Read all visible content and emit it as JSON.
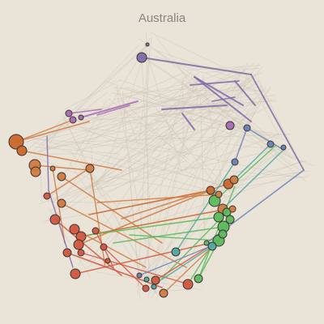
{
  "title": "Australia",
  "colors": {
    "background": "#e9e3d8",
    "title": "#8a8580",
    "faint_edge": "#cfc6b8",
    "purple": "#7f6aa8",
    "violet": "#a86ab5",
    "orange": "#d17a3f",
    "orange_dark": "#c9662b",
    "red": "#d2553f",
    "green": "#5cb85c",
    "teal": "#4fa8a0",
    "blue": "#6a7fb8"
  }
}
